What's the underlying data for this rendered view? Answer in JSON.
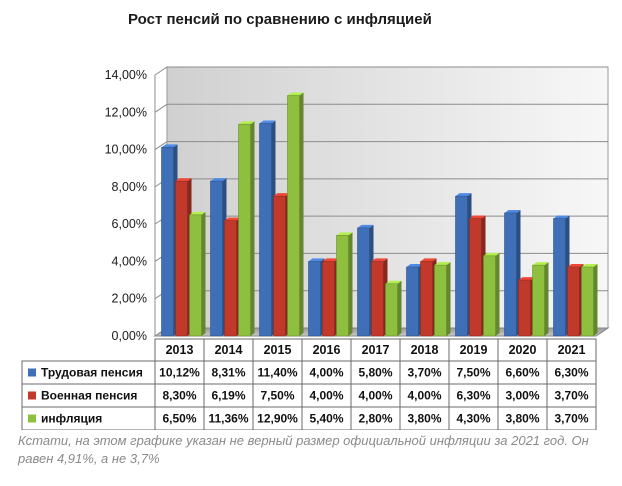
{
  "chart_data": {
    "type": "bar",
    "title": "Рост пенсий по сравнению с инфляцией",
    "categories": [
      "2013",
      "2014",
      "2015",
      "2016",
      "2017",
      "2018",
      "2019",
      "2020",
      "2021"
    ],
    "series": [
      {
        "name": "Трудовая пенсия",
        "color": "#3f6fb7",
        "values": [
          10.12,
          8.31,
          11.4,
          4.0,
          5.8,
          3.7,
          7.5,
          6.6,
          6.3
        ],
        "labels": [
          "10,12%",
          "8,31%",
          "11,40%",
          "4,00%",
          "5,80%",
          "3,70%",
          "7,50%",
          "6,60%",
          "6,30%"
        ]
      },
      {
        "name": "Военная пенсия",
        "color": "#c0392b",
        "values": [
          8.3,
          6.19,
          7.5,
          4.0,
          4.0,
          4.0,
          6.3,
          3.0,
          3.7
        ],
        "labels": [
          "8,30%",
          "6,19%",
          "7,50%",
          "4,00%",
          "4,00%",
          "4,00%",
          "6,30%",
          "3,00%",
          "3,70%"
        ]
      },
      {
        "name": "инфляция",
        "color": "#8fbf3f",
        "values": [
          6.5,
          11.36,
          12.9,
          5.4,
          2.8,
          3.8,
          4.3,
          3.8,
          3.7
        ],
        "labels": [
          "6,50%",
          "11,36%",
          "12,90%",
          "5,40%",
          "2,80%",
          "3,80%",
          "4,30%",
          "3,80%",
          "3,70%"
        ]
      }
    ],
    "ylim": [
      0,
      14
    ],
    "yticks": [
      0,
      2,
      4,
      6,
      8,
      10,
      12,
      14
    ],
    "ytick_labels": [
      "0,00%",
      "2,00%",
      "4,00%",
      "6,00%",
      "8,00%",
      "10,00%",
      "12,00%",
      "14,00%"
    ],
    "grid": true,
    "legend": "data-table"
  },
  "caption": "Кстати, на этом графике указан не верный размер официальной инфляции за 2021 год. Он равен 4,91%, а не 3,7%"
}
